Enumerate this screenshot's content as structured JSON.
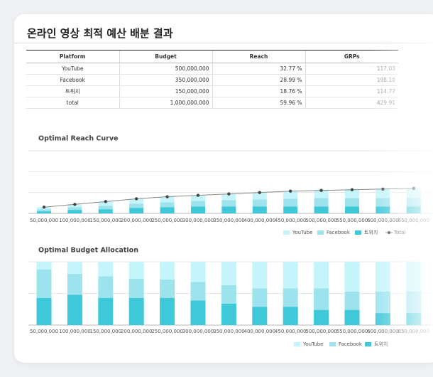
{
  "header": {
    "title": "온라인 영상 최적 예산 배분 결과"
  },
  "table": {
    "columns": [
      "Platform",
      "Budget",
      "Reach",
      "GRPs"
    ],
    "rows": [
      [
        "YouTube",
        "500,000,000",
        "32.77 %",
        "117.03"
      ],
      [
        "Facebook",
        "350,000,000",
        "28.99 %",
        "198.10"
      ],
      [
        "트위치",
        "150,000,000",
        "18.76 %",
        "114.77"
      ],
      [
        "total",
        "1,000,000,000",
        "59.96 %",
        "429.91"
      ]
    ]
  },
  "chart_data": [
    {
      "type": "bar",
      "stacked": true,
      "title": "Optimal Reach Curve",
      "categories": [
        "50,000,000",
        "100,000,000",
        "150,000,000",
        "200,000,000",
        "250,000,000",
        "300,000,000",
        "350,000,000",
        "400,000,000",
        "450,000,000",
        "500,000,000",
        "550,000,000",
        "600,000,000",
        "650,000,000"
      ],
      "series": [
        {
          "name": "YouTube",
          "color": "#c5f5fa",
          "values": [
            3,
            4,
            6,
            7,
            8,
            8,
            9,
            10,
            11,
            12,
            13,
            14,
            15
          ]
        },
        {
          "name": "Facebook",
          "color": "#9de3ee",
          "values": [
            3,
            4,
            5,
            6,
            7,
            8,
            9,
            10,
            11,
            12,
            12,
            12,
            12
          ]
        },
        {
          "name": "트위치",
          "color": "#3ec8d8",
          "values": [
            3,
            5,
            6,
            8,
            9,
            10,
            10,
            10,
            10,
            10,
            10,
            10,
            10
          ]
        },
        {
          "name": "Total",
          "type": "line",
          "color": "#888888",
          "values": [
            9,
            13,
            17,
            21,
            24,
            26,
            28,
            30,
            32,
            33,
            34,
            35,
            36
          ]
        }
      ],
      "ylim": [
        0,
        90
      ],
      "yticks": [
        0,
        30,
        60,
        90
      ],
      "grid": true,
      "legend": "bottom-right"
    },
    {
      "type": "bar",
      "stacked": true,
      "title": "Optimal Budget Allocation",
      "categories": [
        "50,000,000",
        "100,000,000",
        "150,000,000",
        "200,000,000",
        "250,000,000",
        "300,000,000",
        "350,000,000",
        "400,000,000",
        "450,000,000",
        "500,000,000",
        "550,000,000",
        "600,000,000",
        "650,000,000"
      ],
      "series": [
        {
          "name": "YouTube",
          "color": "#c5f5fa",
          "values": [
            12,
            19,
            23,
            27,
            28,
            32,
            37,
            42,
            42,
            42,
            47,
            47,
            47
          ]
        },
        {
          "name": "Facebook",
          "color": "#9de3ee",
          "values": [
            45,
            33,
            34,
            30,
            29,
            29,
            29,
            29,
            29,
            34,
            29,
            34,
            34
          ]
        },
        {
          "name": "트위치",
          "color": "#3ec8d8",
          "values": [
            43,
            48,
            43,
            43,
            43,
            39,
            34,
            29,
            29,
            24,
            24,
            19,
            19
          ]
        }
      ],
      "ylim": [
        0,
        100
      ],
      "yticks": [
        0,
        50,
        100
      ],
      "grid": true,
      "legend": "bottom-right"
    }
  ]
}
